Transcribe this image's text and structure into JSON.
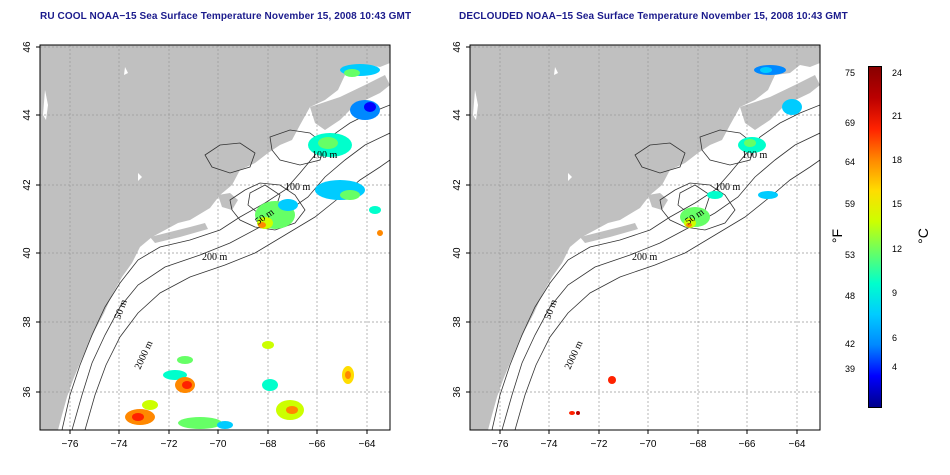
{
  "titles": {
    "left": "RU COOL NOAA−15 Sea Surface Temperature November 15, 2008 10:43 GMT",
    "right": "DECLOUDED NOAA−15 Sea Surface Temperature November 15, 2008 10:43 GMT"
  },
  "axes": {
    "lon_ticks": [
      "−76",
      "−74",
      "−72",
      "−70",
      "−68",
      "−66",
      "−64"
    ],
    "lat_ticks": [
      "36",
      "38",
      "40",
      "42",
      "44",
      "46"
    ]
  },
  "contour_labels": {
    "left": [
      "100 m",
      "100 m",
      "50 m",
      "200 m",
      "50 m",
      "2000 m"
    ],
    "right": [
      "100 m",
      "100 m",
      "50 m",
      "200 m",
      "50 m",
      "2000 m"
    ]
  },
  "colorbar": {
    "fahrenheit": [
      "75",
      "69",
      "64",
      "59",
      "53",
      "48",
      "42",
      "39"
    ],
    "celsius": [
      "24",
      "21",
      "18",
      "15",
      "12",
      "9",
      "6",
      "4"
    ],
    "unit_f": "°F",
    "unit_c": "°C",
    "colors": [
      "#00008b",
      "#0000ff",
      "#0088ff",
      "#00ccff",
      "#00ffcc",
      "#66ff66",
      "#ccff00",
      "#ffdd00",
      "#ff8800",
      "#ff2200",
      "#bb0000",
      "#880000"
    ]
  },
  "map": {
    "land_color": "#c0c0c0",
    "ocean_color": "#ffffff",
    "grid_color": "#999999",
    "contour_color": "#333333"
  }
}
